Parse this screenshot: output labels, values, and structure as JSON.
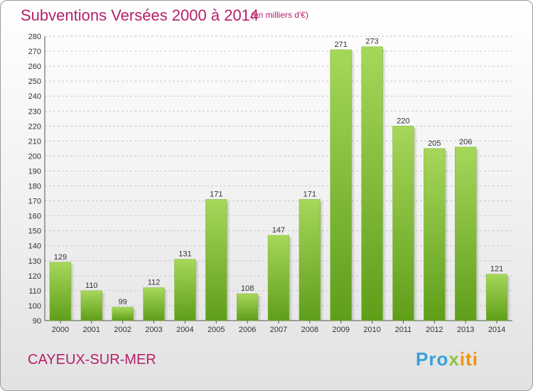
{
  "header": {
    "title": "Subventions Versées 2000 à 2014",
    "subtitle": "(en milliers d'€)"
  },
  "footer": {
    "city": "CAYEUX-SUR-MER",
    "logo_part1": "Pro",
    "logo_part2": "x",
    "logo_part3": "iti"
  },
  "colors": {
    "title": "#b5206a",
    "bar_top": "#a6d75a",
    "bar_bottom": "#5f9e1a",
    "grid": "#c8c8c8"
  },
  "chart_data": {
    "type": "bar",
    "title": "Subventions Versées 2000 à 2014",
    "xlabel": "",
    "ylabel": "",
    "categories": [
      "2000",
      "2001",
      "2002",
      "2003",
      "2004",
      "2005",
      "2006",
      "2007",
      "2008",
      "2009",
      "2010",
      "2011",
      "2012",
      "2013",
      "2014"
    ],
    "values": [
      129,
      110,
      99,
      112,
      131,
      171,
      108,
      147,
      171,
      271,
      273,
      220,
      205,
      206,
      121
    ],
    "ylim": [
      90,
      280
    ],
    "yticks": [
      90,
      100,
      110,
      120,
      130,
      140,
      150,
      160,
      170,
      180,
      190,
      200,
      210,
      220,
      230,
      240,
      250,
      260,
      270,
      280
    ],
    "grid": true,
    "legend": "none"
  }
}
